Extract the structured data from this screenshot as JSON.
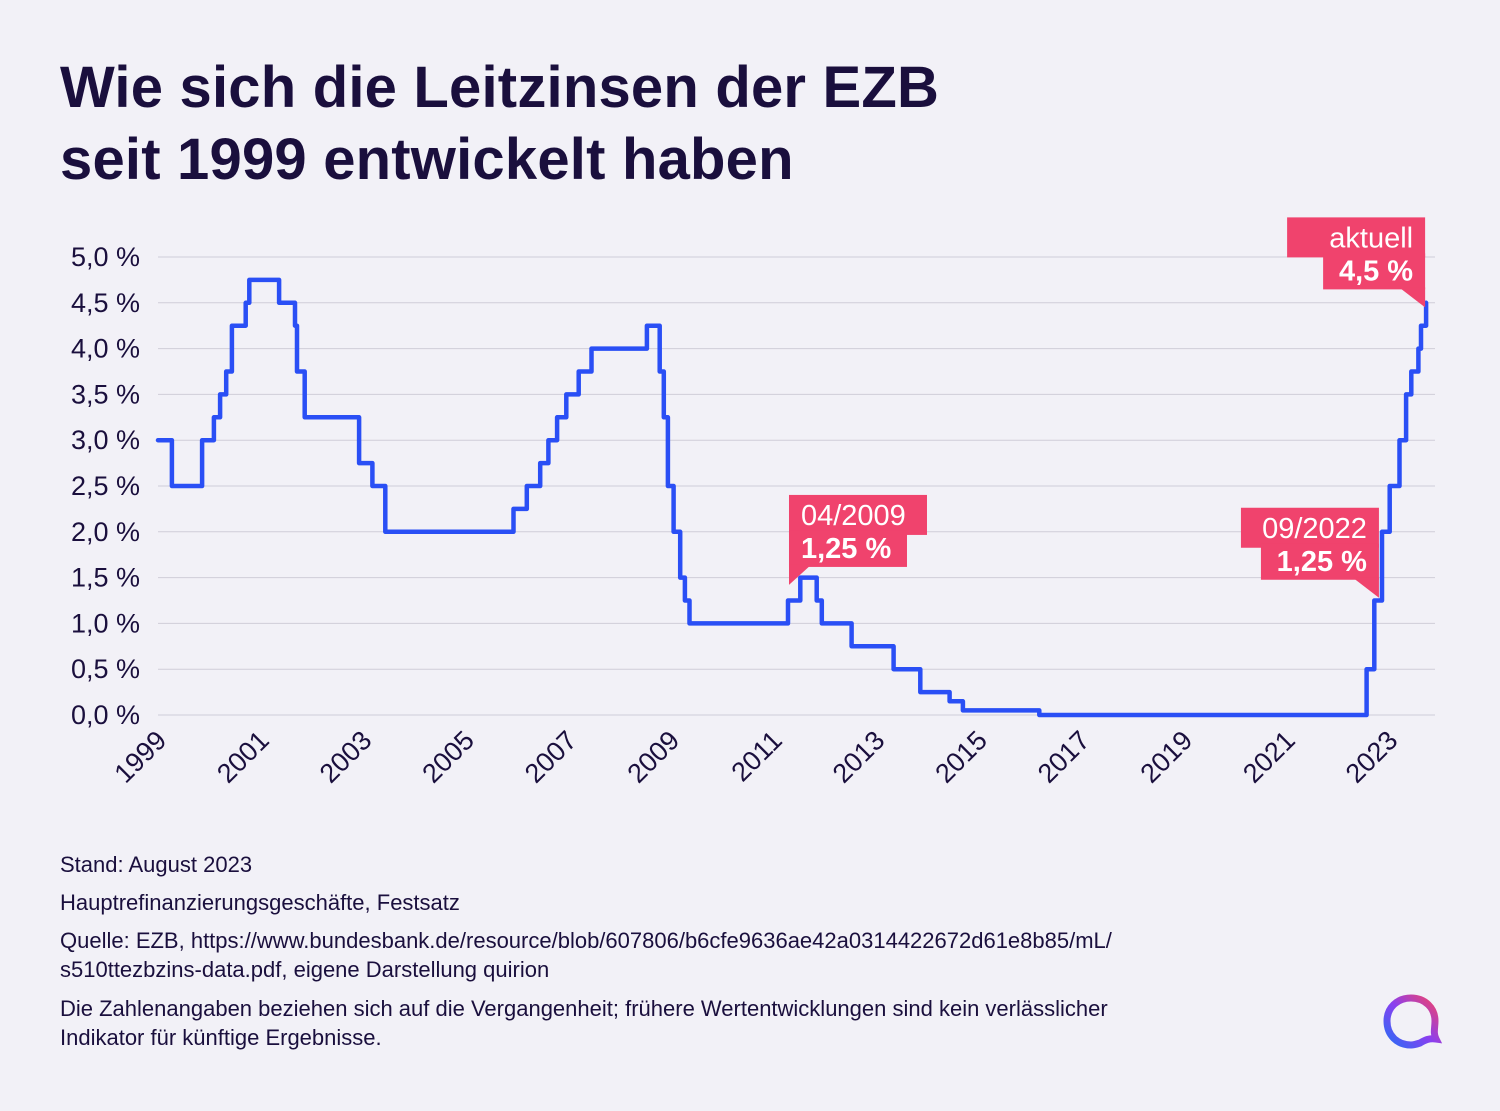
{
  "title": {
    "line1": "Wie sich die Leitzinsen der EZB",
    "line2": "seit 1999 entwickelt haben"
  },
  "notes": {
    "stand": "Stand: August 2023",
    "series_note": "Hauptrefinanzierungsgeschäfte, Festsatz",
    "source_line1": "Quelle: EZB, https://www.bundesbank.de/resource/blob/607806/b6cfe9636ae42a0314422672d61e8b85/mL/",
    "source_line2": "s510ttezbzins-data.pdf, eigene Darstellung quirion",
    "disclaimer_line1": "Die Zahlenangaben beziehen sich auf die Vergangenheit; frühere Wertentwicklungen sind kein verlässlicher",
    "disclaimer_line2": "Indikator für künftige Ergebnisse."
  },
  "colors": {
    "line": "#2a4ff5",
    "annotation": "#f0436d",
    "grid": "#cfcdd8",
    "text": "#1a0f3d",
    "background": "#f2f1f7"
  },
  "logo": {
    "icon": "quirion-logo-icon"
  },
  "chart_data": {
    "type": "line",
    "interpolation": "step-after",
    "title": "Wie sich die Leitzinsen der EZB seit 1999 entwickelt haben",
    "xlabel": "",
    "ylabel": "",
    "xlim": [
      1999.0,
      2023.62
    ],
    "ylim": [
      0,
      5
    ],
    "grid": true,
    "legend": "none",
    "yticks": [
      {
        "value": 0.0,
        "label": "0,0 %"
      },
      {
        "value": 0.5,
        "label": "0,5 %"
      },
      {
        "value": 1.0,
        "label": "1,0 %"
      },
      {
        "value": 1.5,
        "label": "1,5 %"
      },
      {
        "value": 2.0,
        "label": "2,0 %"
      },
      {
        "value": 2.5,
        "label": "2,5 %"
      },
      {
        "value": 3.0,
        "label": "3,0 %"
      },
      {
        "value": 3.5,
        "label": "3,5 %"
      },
      {
        "value": 4.0,
        "label": "4,0 %"
      },
      {
        "value": 4.5,
        "label": "4,5 %"
      },
      {
        "value": 5.0,
        "label": "5,0 %"
      }
    ],
    "xticks": [
      {
        "value": 1999,
        "label": "1999"
      },
      {
        "value": 2001,
        "label": "2001"
      },
      {
        "value": 2003,
        "label": "2003"
      },
      {
        "value": 2005,
        "label": "2005"
      },
      {
        "value": 2007,
        "label": "2007"
      },
      {
        "value": 2009,
        "label": "2009"
      },
      {
        "value": 2011,
        "label": "2011"
      },
      {
        "value": 2013,
        "label": "2013"
      },
      {
        "value": 2015,
        "label": "2015"
      },
      {
        "value": 2017,
        "label": "2017"
      },
      {
        "value": 2019,
        "label": "2019"
      },
      {
        "value": 2021,
        "label": "2021"
      },
      {
        "value": 2023,
        "label": "2023"
      }
    ],
    "series": [
      {
        "points": [
          [
            1999.0,
            3.0
          ],
          [
            1999.27,
            2.5
          ],
          [
            1999.86,
            3.0
          ],
          [
            2000.09,
            3.25
          ],
          [
            2000.21,
            3.5
          ],
          [
            2000.33,
            3.75
          ],
          [
            2000.44,
            4.25
          ],
          [
            2000.71,
            4.5
          ],
          [
            2000.78,
            4.75
          ],
          [
            2001.36,
            4.5
          ],
          [
            2001.67,
            4.25
          ],
          [
            2001.71,
            3.75
          ],
          [
            2001.86,
            3.25
          ],
          [
            2002.92,
            2.75
          ],
          [
            2003.18,
            2.5
          ],
          [
            2003.43,
            2.0
          ],
          [
            2005.93,
            2.25
          ],
          [
            2006.19,
            2.5
          ],
          [
            2006.45,
            2.75
          ],
          [
            2006.61,
            3.0
          ],
          [
            2006.78,
            3.25
          ],
          [
            2006.96,
            3.5
          ],
          [
            2007.2,
            3.75
          ],
          [
            2007.45,
            4.0
          ],
          [
            2008.53,
            4.25
          ],
          [
            2008.78,
            3.75
          ],
          [
            2008.86,
            3.25
          ],
          [
            2008.94,
            2.5
          ],
          [
            2009.05,
            2.0
          ],
          [
            2009.18,
            1.5
          ],
          [
            2009.27,
            1.25
          ],
          [
            2009.36,
            1.0
          ],
          [
            2011.28,
            1.25
          ],
          [
            2011.52,
            1.5
          ],
          [
            2011.84,
            1.25
          ],
          [
            2011.94,
            1.0
          ],
          [
            2012.52,
            0.75
          ],
          [
            2013.34,
            0.5
          ],
          [
            2013.86,
            0.25
          ],
          [
            2014.43,
            0.15
          ],
          [
            2014.69,
            0.05
          ],
          [
            2016.18,
            0.0
          ],
          [
            2022.56,
            0.5
          ],
          [
            2022.71,
            1.25
          ],
          [
            2022.86,
            2.0
          ],
          [
            2023.01,
            2.5
          ],
          [
            2023.2,
            3.0
          ],
          [
            2023.33,
            3.5
          ],
          [
            2023.43,
            3.75
          ],
          [
            2023.57,
            4.0
          ],
          [
            2023.62,
            4.25
          ],
          [
            2023.72,
            4.5
          ]
        ]
      }
    ],
    "annotations": [
      {
        "date": "04/2009",
        "value": "1,25 %",
        "x": 2011.3,
        "y": 1.42,
        "pointer": "bottom-left"
      },
      {
        "date": "09/2022",
        "value": "1,25 %",
        "x": 2022.8,
        "y": 1.28,
        "pointer": "bottom-right"
      },
      {
        "date": "aktuell",
        "value": "4,5 %",
        "x": 2023.7,
        "y": 4.45,
        "pointer": "bottom-right"
      }
    ]
  }
}
